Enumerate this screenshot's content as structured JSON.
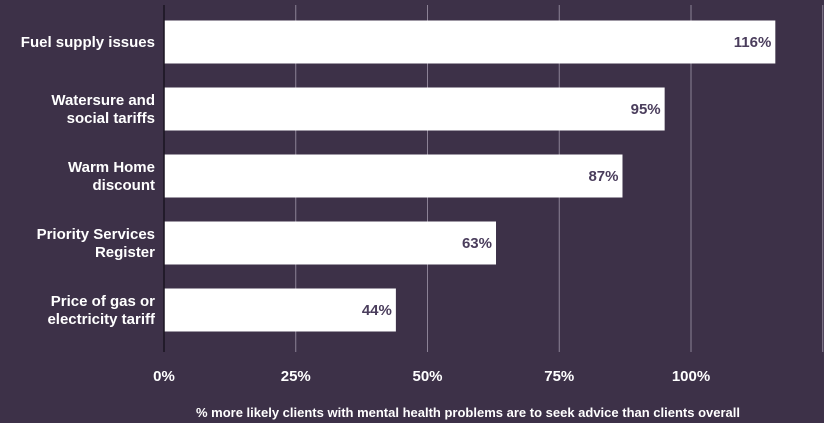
{
  "chart_data": {
    "type": "bar",
    "orientation": "horizontal",
    "categories": [
      [
        "Fuel supply issues"
      ],
      [
        "Watersure and",
        "social tariffs"
      ],
      [
        "Warm Home",
        "discount"
      ],
      [
        "Priority Services",
        "Register"
      ],
      [
        "Price of gas or",
        "electricity tariff"
      ]
    ],
    "values": [
      116,
      95,
      87,
      63,
      44
    ],
    "value_labels": [
      "116%",
      "95%",
      "87%",
      "63%",
      "44%"
    ],
    "xticks": [
      0,
      25,
      50,
      75,
      100
    ],
    "xtick_labels": [
      "0%",
      "25%",
      "50%",
      "75%",
      "100%"
    ],
    "xlim": [
      0,
      125
    ],
    "xlabel": "% more likely clients with mental health problems are to seek advice than clients overall",
    "grid": true,
    "colors": {
      "background": "#3d3148",
      "bar": "#ffffff",
      "value_text": "#4a3d5c",
      "text": "#ffffff"
    }
  }
}
